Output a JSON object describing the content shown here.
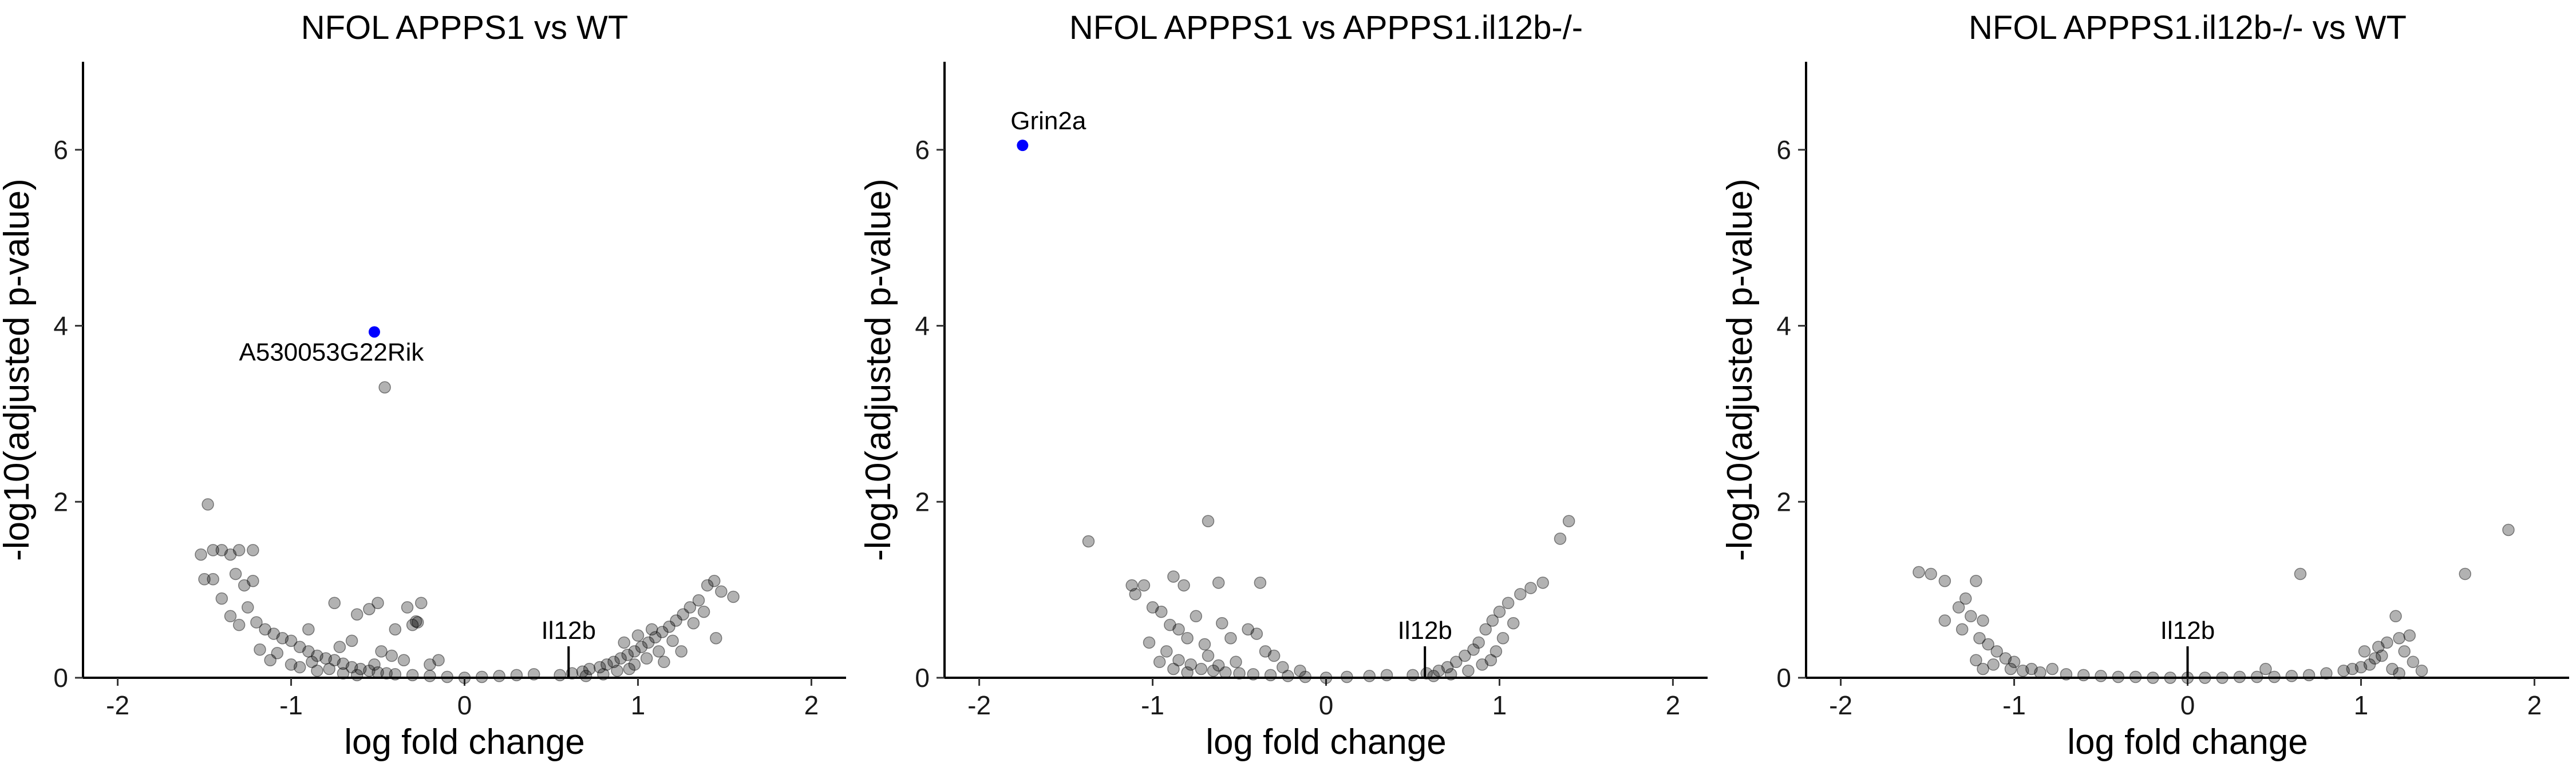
{
  "chart_data": [
    {
      "type": "scatter",
      "title": "NFOL APPPS1 vs WT",
      "xlabel": "log fold change",
      "ylabel": "-log10(adjusted p-value)",
      "xlim": [
        -2.2,
        2.2
      ],
      "ylim": [
        0,
        7
      ],
      "xticks": [
        "-2",
        "-1",
        "0",
        "1",
        "2"
      ],
      "yticks": [
        "0",
        "2",
        "4",
        "6"
      ],
      "grid": false,
      "legend": "none",
      "point_color": "#000000",
      "point_alpha": 0.3,
      "highlight_color": "#0000ff",
      "highlighted": [
        {
          "x": -0.52,
          "y": 3.93,
          "label": "A530053G22Rik"
        }
      ],
      "marker": {
        "x": 0.6,
        "label": "Il12b"
      },
      "points": [
        {
          "x": -1.48,
          "y": 1.97
        },
        {
          "x": -1.52,
          "y": 1.4
        },
        {
          "x": -1.45,
          "y": 1.45
        },
        {
          "x": -1.4,
          "y": 1.45
        },
        {
          "x": -1.3,
          "y": 1.45
        },
        {
          "x": -1.22,
          "y": 1.45
        },
        {
          "x": -1.35,
          "y": 1.4
        },
        {
          "x": -1.5,
          "y": 1.12
        },
        {
          "x": -1.45,
          "y": 1.12
        },
        {
          "x": -1.32,
          "y": 1.18
        },
        {
          "x": -1.27,
          "y": 1.05
        },
        {
          "x": -1.22,
          "y": 1.1
        },
        {
          "x": -1.4,
          "y": 0.9
        },
        {
          "x": -1.25,
          "y": 0.8
        },
        {
          "x": -1.35,
          "y": 0.7
        },
        {
          "x": -1.2,
          "y": 0.63
        },
        {
          "x": -1.3,
          "y": 0.6
        },
        {
          "x": -1.15,
          "y": 0.55
        },
        {
          "x": -1.1,
          "y": 0.5
        },
        {
          "x": -1.05,
          "y": 0.45
        },
        {
          "x": -1.0,
          "y": 0.42
        },
        {
          "x": -0.95,
          "y": 0.35
        },
        {
          "x": -0.9,
          "y": 0.3
        },
        {
          "x": -1.08,
          "y": 0.28
        },
        {
          "x": -1.18,
          "y": 0.32
        },
        {
          "x": -0.85,
          "y": 0.25
        },
        {
          "x": -0.8,
          "y": 0.22
        },
        {
          "x": -0.75,
          "y": 0.2
        },
        {
          "x": -0.7,
          "y": 0.16
        },
        {
          "x": -0.65,
          "y": 0.12
        },
        {
          "x": -0.6,
          "y": 0.1
        },
        {
          "x": -0.55,
          "y": 0.08
        },
        {
          "x": -0.5,
          "y": 0.06
        },
        {
          "x": -0.45,
          "y": 0.05
        },
        {
          "x": -0.4,
          "y": 0.04
        },
        {
          "x": -0.3,
          "y": 0.03
        },
        {
          "x": -0.2,
          "y": 0.02
        },
        {
          "x": -0.1,
          "y": 0.01
        },
        {
          "x": 0.0,
          "y": 0.0
        },
        {
          "x": 0.1,
          "y": 0.01
        },
        {
          "x": 0.2,
          "y": 0.02
        },
        {
          "x": 0.3,
          "y": 0.03
        },
        {
          "x": 0.4,
          "y": 0.04
        },
        {
          "x": -0.95,
          "y": 0.12
        },
        {
          "x": -0.85,
          "y": 0.08
        },
        {
          "x": -1.0,
          "y": 0.15
        },
        {
          "x": -0.7,
          "y": 0.05
        },
        {
          "x": -0.88,
          "y": 0.18
        },
        {
          "x": -0.78,
          "y": 0.1
        },
        {
          "x": -0.62,
          "y": 0.03
        },
        {
          "x": -1.12,
          "y": 0.2
        },
        {
          "x": -0.52,
          "y": 0.15
        },
        {
          "x": -0.5,
          "y": 0.85
        },
        {
          "x": -0.55,
          "y": 0.78
        },
        {
          "x": -0.62,
          "y": 0.72
        },
        {
          "x": -0.75,
          "y": 0.85
        },
        {
          "x": -0.9,
          "y": 0.55
        },
        {
          "x": -0.4,
          "y": 0.55
        },
        {
          "x": -0.3,
          "y": 0.6
        },
        {
          "x": -0.25,
          "y": 0.85
        },
        {
          "x": -0.33,
          "y": 0.8
        },
        {
          "x": -0.65,
          "y": 0.42
        },
        {
          "x": -0.72,
          "y": 0.35
        },
        {
          "x": -0.48,
          "y": 0.3
        },
        {
          "x": -0.42,
          "y": 0.25
        },
        {
          "x": -0.35,
          "y": 0.2
        },
        {
          "x": -0.2,
          "y": 0.15
        },
        {
          "x": -0.15,
          "y": 0.2
        },
        {
          "x": -0.46,
          "y": 3.3
        },
        {
          "x": -0.27,
          "y": 0.63
        },
        {
          "x": -0.28,
          "y": 0.64
        },
        {
          "x": 0.55,
          "y": 0.03
        },
        {
          "x": 0.62,
          "y": 0.05
        },
        {
          "x": 0.68,
          "y": 0.07
        },
        {
          "x": 0.72,
          "y": 0.1
        },
        {
          "x": 0.78,
          "y": 0.12
        },
        {
          "x": 0.82,
          "y": 0.15
        },
        {
          "x": 0.86,
          "y": 0.18
        },
        {
          "x": 0.9,
          "y": 0.22
        },
        {
          "x": 0.94,
          "y": 0.26
        },
        {
          "x": 0.98,
          "y": 0.3
        },
        {
          "x": 1.02,
          "y": 0.35
        },
        {
          "x": 1.06,
          "y": 0.4
        },
        {
          "x": 1.1,
          "y": 0.46
        },
        {
          "x": 1.14,
          "y": 0.52
        },
        {
          "x": 1.18,
          "y": 0.58
        },
        {
          "x": 1.22,
          "y": 0.65
        },
        {
          "x": 1.26,
          "y": 0.72
        },
        {
          "x": 1.3,
          "y": 0.8
        },
        {
          "x": 1.35,
          "y": 0.88
        },
        {
          "x": 1.4,
          "y": 1.05
        },
        {
          "x": 1.44,
          "y": 1.1
        },
        {
          "x": 1.48,
          "y": 0.98
        },
        {
          "x": 1.55,
          "y": 0.92
        },
        {
          "x": 1.38,
          "y": 0.75
        },
        {
          "x": 1.32,
          "y": 0.62
        },
        {
          "x": 1.2,
          "y": 0.42
        },
        {
          "x": 1.12,
          "y": 0.3
        },
        {
          "x": 1.05,
          "y": 0.22
        },
        {
          "x": 0.98,
          "y": 0.15
        },
        {
          "x": 0.88,
          "y": 0.08
        },
        {
          "x": 0.8,
          "y": 0.04
        },
        {
          "x": 0.7,
          "y": 0.02
        },
        {
          "x": 1.45,
          "y": 0.45
        },
        {
          "x": 1.25,
          "y": 0.3
        },
        {
          "x": 1.15,
          "y": 0.18
        },
        {
          "x": 0.95,
          "y": 0.1
        },
        {
          "x": 1.08,
          "y": 0.55
        },
        {
          "x": 1.0,
          "y": 0.48
        },
        {
          "x": 0.92,
          "y": 0.4
        }
      ]
    },
    {
      "type": "scatter",
      "title": "NFOL APPPS1 vs APPPS1.il12b-/-",
      "xlabel": "log fold change",
      "ylabel": "-log10(adjusted p-value)",
      "xlim": [
        -2.2,
        2.2
      ],
      "ylim": [
        0,
        7
      ],
      "xticks": [
        "-2",
        "-1",
        "0",
        "1",
        "2"
      ],
      "yticks": [
        "0",
        "2",
        "4",
        "6"
      ],
      "grid": false,
      "legend": "none",
      "point_color": "#000000",
      "point_alpha": 0.3,
      "highlight_color": "#0000ff",
      "highlighted": [
        {
          "x": -1.75,
          "y": 6.05,
          "label": "Grin2a"
        }
      ],
      "marker": {
        "x": 0.57,
        "label": "Il12b"
      },
      "points": [
        {
          "x": -1.37,
          "y": 1.55
        },
        {
          "x": -0.68,
          "y": 1.78
        },
        {
          "x": -1.12,
          "y": 1.05
        },
        {
          "x": -1.05,
          "y": 1.05
        },
        {
          "x": -0.88,
          "y": 1.15
        },
        {
          "x": -0.82,
          "y": 1.05
        },
        {
          "x": -0.62,
          "y": 1.08
        },
        {
          "x": -0.38,
          "y": 1.08
        },
        {
          "x": -1.1,
          "y": 0.95
        },
        {
          "x": -1.0,
          "y": 0.8
        },
        {
          "x": -0.95,
          "y": 0.75
        },
        {
          "x": -0.9,
          "y": 0.6
        },
        {
          "x": -0.85,
          "y": 0.55
        },
        {
          "x": -0.8,
          "y": 0.45
        },
        {
          "x": -0.75,
          "y": 0.7
        },
        {
          "x": -0.7,
          "y": 0.38
        },
        {
          "x": -0.6,
          "y": 0.62
        },
        {
          "x": -0.55,
          "y": 0.45
        },
        {
          "x": -0.45,
          "y": 0.55
        },
        {
          "x": -0.4,
          "y": 0.5
        },
        {
          "x": -0.35,
          "y": 0.3
        },
        {
          "x": -0.3,
          "y": 0.25
        },
        {
          "x": -1.02,
          "y": 0.4
        },
        {
          "x": -0.92,
          "y": 0.3
        },
        {
          "x": -0.85,
          "y": 0.2
        },
        {
          "x": -0.78,
          "y": 0.15
        },
        {
          "x": -0.72,
          "y": 0.1
        },
        {
          "x": -0.65,
          "y": 0.08
        },
        {
          "x": -0.58,
          "y": 0.06
        },
        {
          "x": -0.5,
          "y": 0.05
        },
        {
          "x": -0.42,
          "y": 0.04
        },
        {
          "x": -0.32,
          "y": 0.03
        },
        {
          "x": -0.22,
          "y": 0.02
        },
        {
          "x": -0.12,
          "y": 0.01
        },
        {
          "x": 0.0,
          "y": 0.0
        },
        {
          "x": 0.12,
          "y": 0.01
        },
        {
          "x": 0.25,
          "y": 0.02
        },
        {
          "x": 0.35,
          "y": 0.03
        },
        {
          "x": -0.88,
          "y": 0.1
        },
        {
          "x": -0.8,
          "y": 0.06
        },
        {
          "x": -0.68,
          "y": 0.25
        },
        {
          "x": -0.52,
          "y": 0.18
        },
        {
          "x": -0.25,
          "y": 0.12
        },
        {
          "x": -0.15,
          "y": 0.08
        },
        {
          "x": -0.96,
          "y": 0.18
        },
        {
          "x": -0.62,
          "y": 0.14
        },
        {
          "x": 0.5,
          "y": 0.03
        },
        {
          "x": 0.58,
          "y": 0.05
        },
        {
          "x": 0.65,
          "y": 0.08
        },
        {
          "x": 0.7,
          "y": 0.12
        },
        {
          "x": 0.75,
          "y": 0.18
        },
        {
          "x": 0.8,
          "y": 0.25
        },
        {
          "x": 0.85,
          "y": 0.32
        },
        {
          "x": 0.88,
          "y": 0.4
        },
        {
          "x": 0.92,
          "y": 0.55
        },
        {
          "x": 0.96,
          "y": 0.65
        },
        {
          "x": 1.0,
          "y": 0.75
        },
        {
          "x": 1.05,
          "y": 0.85
        },
        {
          "x": 1.12,
          "y": 0.95
        },
        {
          "x": 1.18,
          "y": 1.02
        },
        {
          "x": 1.25,
          "y": 1.08
        },
        {
          "x": 1.35,
          "y": 1.58
        },
        {
          "x": 1.4,
          "y": 1.78
        },
        {
          "x": 0.95,
          "y": 0.2
        },
        {
          "x": 0.9,
          "y": 0.15
        },
        {
          "x": 0.82,
          "y": 0.08
        },
        {
          "x": 0.72,
          "y": 0.04
        },
        {
          "x": 0.62,
          "y": 0.02
        },
        {
          "x": 1.02,
          "y": 0.45
        },
        {
          "x": 0.98,
          "y": 0.3
        },
        {
          "x": 1.08,
          "y": 0.62
        }
      ]
    },
    {
      "type": "scatter",
      "title": "NFOL APPPS1.il12b-/- vs WT",
      "xlabel": "log fold change",
      "ylabel": "-log10(adjusted p-value)",
      "xlim": [
        -2.2,
        2.2
      ],
      "ylim": [
        0,
        7
      ],
      "xticks": [
        "-2",
        "-1",
        "0",
        "1",
        "2"
      ],
      "yticks": [
        "0",
        "2",
        "4",
        "6"
      ],
      "grid": false,
      "legend": "none",
      "point_color": "#000000",
      "point_alpha": 0.3,
      "highlight_color": "#0000ff",
      "highlighted": [],
      "marker": {
        "x": 0.0,
        "label": "Il12b"
      },
      "points": [
        {
          "x": -1.55,
          "y": 1.2
        },
        {
          "x": -1.48,
          "y": 1.18
        },
        {
          "x": -1.4,
          "y": 1.1
        },
        {
          "x": -1.22,
          "y": 1.1
        },
        {
          "x": -1.28,
          "y": 0.9
        },
        {
          "x": -1.32,
          "y": 0.8
        },
        {
          "x": -1.25,
          "y": 0.7
        },
        {
          "x": -1.18,
          "y": 0.65
        },
        {
          "x": -1.4,
          "y": 0.65
        },
        {
          "x": -1.3,
          "y": 0.55
        },
        {
          "x": -1.2,
          "y": 0.45
        },
        {
          "x": -1.15,
          "y": 0.38
        },
        {
          "x": -1.1,
          "y": 0.3
        },
        {
          "x": -1.05,
          "y": 0.22
        },
        {
          "x": -1.0,
          "y": 0.18
        },
        {
          "x": -1.12,
          "y": 0.15
        },
        {
          "x": -1.18,
          "y": 0.1
        },
        {
          "x": -1.22,
          "y": 0.2
        },
        {
          "x": -1.02,
          "y": 0.1
        },
        {
          "x": -0.95,
          "y": 0.08
        },
        {
          "x": -0.9,
          "y": 0.1
        },
        {
          "x": -0.85,
          "y": 0.06
        },
        {
          "x": -0.78,
          "y": 0.1
        },
        {
          "x": -0.7,
          "y": 0.04
        },
        {
          "x": -0.6,
          "y": 0.03
        },
        {
          "x": -0.5,
          "y": 0.02
        },
        {
          "x": -0.4,
          "y": 0.01
        },
        {
          "x": -0.3,
          "y": 0.01
        },
        {
          "x": -0.2,
          "y": 0.0
        },
        {
          "x": -0.1,
          "y": 0.0
        },
        {
          "x": 0.0,
          "y": 0.0
        },
        {
          "x": 0.1,
          "y": 0.0
        },
        {
          "x": 0.2,
          "y": 0.0
        },
        {
          "x": 0.3,
          "y": 0.01
        },
        {
          "x": 0.4,
          "y": 0.01
        },
        {
          "x": 0.5,
          "y": 0.01
        },
        {
          "x": 0.6,
          "y": 0.02
        },
        {
          "x": 0.7,
          "y": 0.03
        },
        {
          "x": 0.45,
          "y": 0.1
        },
        {
          "x": 0.8,
          "y": 0.05
        },
        {
          "x": 0.9,
          "y": 0.08
        },
        {
          "x": 0.95,
          "y": 0.1
        },
        {
          "x": 1.0,
          "y": 0.12
        },
        {
          "x": 1.05,
          "y": 0.15
        },
        {
          "x": 1.08,
          "y": 0.22
        },
        {
          "x": 1.02,
          "y": 0.3
        },
        {
          "x": 1.1,
          "y": 0.35
        },
        {
          "x": 1.15,
          "y": 0.4
        },
        {
          "x": 1.12,
          "y": 0.25
        },
        {
          "x": 1.2,
          "y": 0.7
        },
        {
          "x": 1.22,
          "y": 0.45
        },
        {
          "x": 1.28,
          "y": 0.48
        },
        {
          "x": 1.25,
          "y": 0.3
        },
        {
          "x": 1.3,
          "y": 0.18
        },
        {
          "x": 1.18,
          "y": 0.1
        },
        {
          "x": 1.22,
          "y": 0.05
        },
        {
          "x": 1.35,
          "y": 0.08
        },
        {
          "x": 0.65,
          "y": 1.18
        },
        {
          "x": 1.6,
          "y": 1.18
        },
        {
          "x": 1.85,
          "y": 1.68
        }
      ]
    }
  ]
}
